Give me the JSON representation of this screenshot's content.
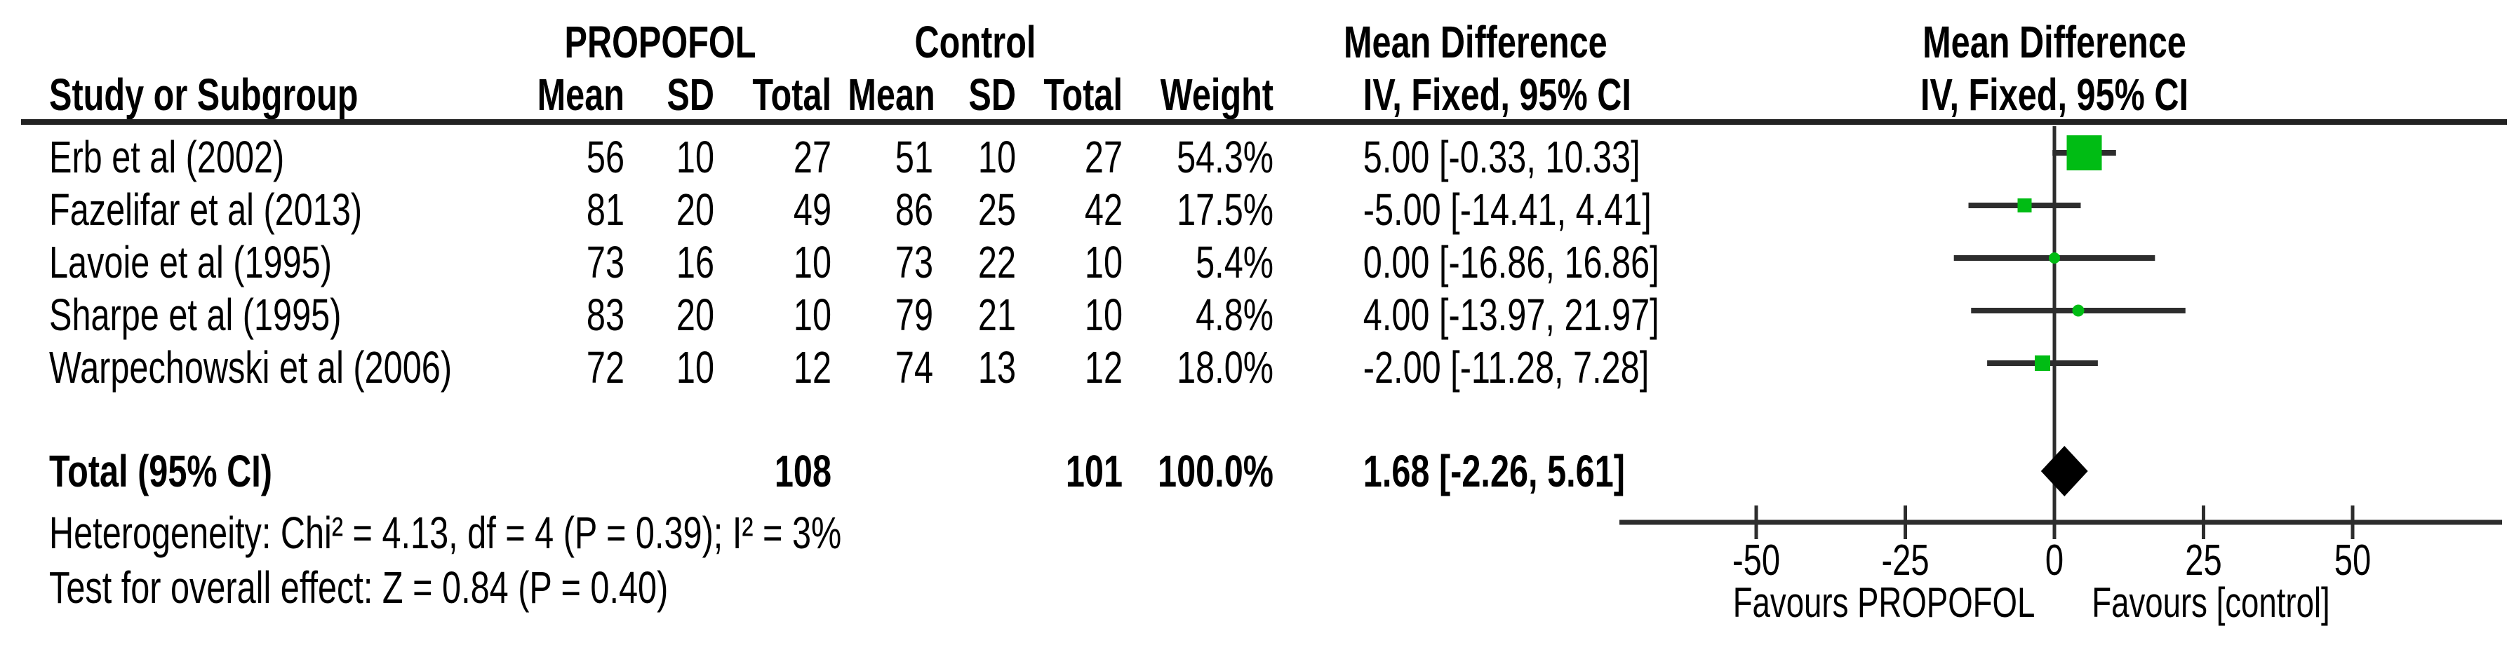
{
  "header": {
    "study_col": "Study or Subgroup",
    "group_experimental": "PROPOFOL",
    "group_control": "Control",
    "sub_cols": [
      "Mean",
      "SD",
      "Total"
    ],
    "weight_col": "Weight",
    "effect_col_title": "Mean Difference",
    "effect_col_subtitle": "IV, Fixed, 95% CI",
    "plot_col_title": "Mean Difference",
    "plot_col_subtitle": "IV, Fixed, 95% CI"
  },
  "chart_data": {
    "type": "forest",
    "effect_measure": "Mean Difference",
    "method": "IV, Fixed, 95% CI",
    "studies": [
      {
        "name": "Erb et al (2002)",
        "exp_mean": 56,
        "exp_sd": 10,
        "exp_total": 27,
        "ctl_mean": 51,
        "ctl_sd": 10,
        "ctl_total": 27,
        "weight": "54.3%",
        "md": 5.0,
        "ci_low": -0.33,
        "ci_high": 10.33,
        "ci_text": "5.00 [-0.33, 10.33]",
        "marker_shape": "square",
        "marker_size": 50
      },
      {
        "name": "Fazelifar et al (2013)",
        "exp_mean": 81,
        "exp_sd": 20,
        "exp_total": 49,
        "ctl_mean": 86,
        "ctl_sd": 25,
        "ctl_total": 42,
        "weight": "17.5%",
        "md": -5.0,
        "ci_low": -14.41,
        "ci_high": 4.41,
        "ci_text": "-5.00 [-14.41, 4.41]",
        "marker_shape": "square",
        "marker_size": 20
      },
      {
        "name": "Lavoie et al (1995)",
        "exp_mean": 73,
        "exp_sd": 16,
        "exp_total": 10,
        "ctl_mean": 73,
        "ctl_sd": 22,
        "ctl_total": 10,
        "weight": "5.4%",
        "md": 0.0,
        "ci_low": -16.86,
        "ci_high": 16.86,
        "ci_text": "0.00 [-16.86, 16.86]",
        "marker_shape": "circle",
        "marker_size": 16
      },
      {
        "name": "Sharpe et al (1995)",
        "exp_mean": 83,
        "exp_sd": 20,
        "exp_total": 10,
        "ctl_mean": 79,
        "ctl_sd": 21,
        "ctl_total": 10,
        "weight": "4.8%",
        "md": 4.0,
        "ci_low": -13.97,
        "ci_high": 21.97,
        "ci_text": "4.00 [-13.97, 21.97]",
        "marker_shape": "circle",
        "marker_size": 17
      },
      {
        "name": "Warpechowski et al (2006)",
        "exp_mean": 72,
        "exp_sd": 10,
        "exp_total": 12,
        "ctl_mean": 74,
        "ctl_sd": 13,
        "ctl_total": 12,
        "weight": "18.0%",
        "md": -2.0,
        "ci_low": -11.28,
        "ci_high": 7.28,
        "ci_text": "-2.00 [-11.28, 7.28]",
        "marker_shape": "square",
        "marker_size": 22
      }
    ],
    "total": {
      "label": "Total (95% CI)",
      "exp_total": 108,
      "ctl_total": 101,
      "weight": "100.0%",
      "md": 1.68,
      "ci_low": -2.26,
      "ci_high": 5.61,
      "ci_text": "1.68 [-2.26, 5.61]"
    },
    "axis": {
      "ticks": [
        -50,
        -25,
        0,
        25,
        50
      ],
      "xmin": -73,
      "xmax": 75,
      "favours_left": "Favours PROPOFOL",
      "favours_right": "Favours [control]"
    },
    "grid": false,
    "legend_position": "none"
  },
  "footer": {
    "heterogeneity": "Heterogeneity: Chi² = 4.13, df = 4 (P = 0.39); I² = 3%",
    "overall_effect": "Test for overall effect: Z = 0.84 (P = 0.40)"
  },
  "colors": {
    "marker_green": "#00bc14",
    "summary_diamond": "#000000",
    "line": "#2d2d2d",
    "text": "#000000"
  }
}
